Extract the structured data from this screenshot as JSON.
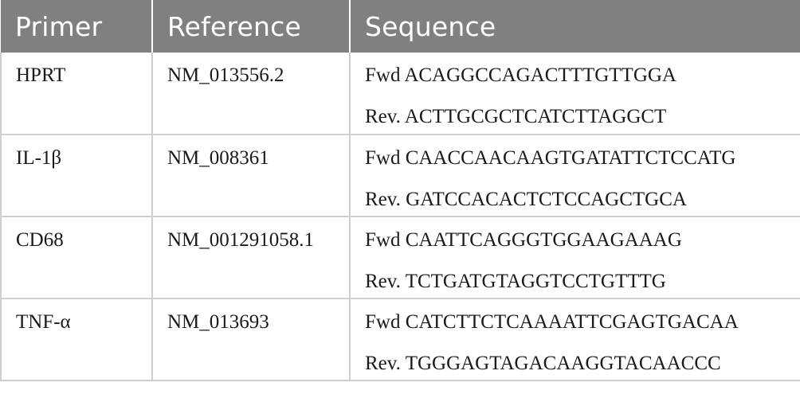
{
  "table": {
    "headers": [
      "Primer",
      "Reference",
      "Sequence"
    ],
    "rows": [
      {
        "primer": "HPRT",
        "reference": "NM_013556.2",
        "fwd": "Fwd ACAGGCCAGACTTTGTTGGA",
        "rev": "Rev. ACTTGCGCTCATCTTAGGCT"
      },
      {
        "primer": "IL-1β",
        "reference": "NM_008361",
        "fwd": "Fwd CAACCAACAAGTGATATTCTCCATG",
        "rev": "Rev. GATCCACACTCTCCAGCTGCA"
      },
      {
        "primer": "CD68",
        "reference": "NM_001291058.1",
        "fwd": "Fwd CAATTCAGGGTGGAAGAAAG",
        "rev": "Rev. TCTGATGTAGGTCCTGTTTG"
      },
      {
        "primer": "TNF-α",
        "reference": "NM_013693",
        "fwd": "Fwd CATCTTCTCAAAATTCGAGTGACAA",
        "rev": "Rev. TGGGAGTAGACAAGGTACAACCC"
      }
    ]
  },
  "colors": {
    "header_bg": "#808080",
    "header_text": "#ffffff",
    "grid": "#cfcfcf",
    "body_text": "#1a1a1a"
  }
}
